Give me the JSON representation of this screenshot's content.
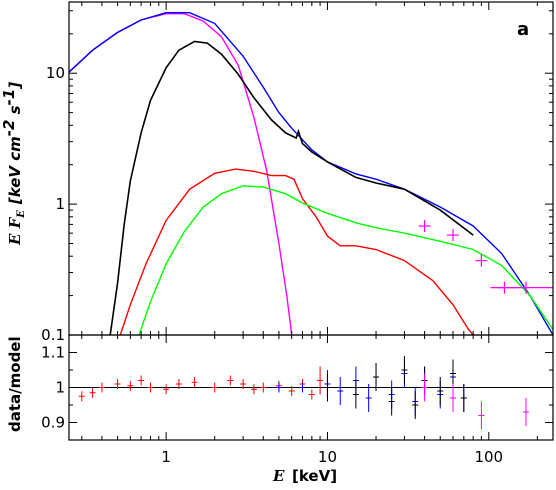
{
  "panel_label": "a",
  "colors": {
    "black_data": "#000000",
    "red": "#ff0000",
    "blue": "#0000ff",
    "green": "#00ff00",
    "magenta": "#ff00ff",
    "axis": "#000000"
  },
  "chart_data": [
    {
      "type": "line",
      "panel": "top",
      "xscale": "log",
      "yscale": "log",
      "xlim": [
        0.25,
        250
      ],
      "ylim": [
        0.1,
        35
      ],
      "ylabel_italic": "E F",
      "ylabel_sub": "E",
      "ylabel_unit": "[keV cm",
      "ylabel_exp1": "-2",
      "ylabel_mid": " s",
      "ylabel_exp2": "-1",
      "ylabel_end": "]",
      "ytick_labels": [
        {
          "v": 0.1,
          "t": "0.1"
        },
        {
          "v": 1,
          "t": "1"
        },
        {
          "v": 10,
          "t": "10"
        }
      ],
      "series": [
        {
          "color": "magenta",
          "x": [
            0.25,
            0.35,
            0.5,
            0.7,
            1.0,
            1.3,
            1.7,
            2.2,
            2.8,
            3.5,
            4.2,
            5.0,
            5.6,
            6.0
          ],
          "y": [
            10.2,
            15,
            20.5,
            25.5,
            28.5,
            28.5,
            25,
            19,
            11.5,
            4.6,
            1.8,
            0.5,
            0.2,
            0.1
          ]
        },
        {
          "color": "blue",
          "x": [
            0.25,
            0.35,
            0.5,
            0.7,
            1.0,
            1.4,
            2.0,
            3.0,
            4.0,
            5.0,
            6.0,
            7.0,
            8.0,
            10,
            15,
            20,
            30,
            50,
            80,
            120,
            180,
            250
          ],
          "y": [
            10.2,
            15,
            20.5,
            25.5,
            29,
            29,
            24,
            13.5,
            7.8,
            5.0,
            3.8,
            3.1,
            2.6,
            2.1,
            1.7,
            1.55,
            1.3,
            0.95,
            0.68,
            0.42,
            0.2,
            0.1
          ]
        },
        {
          "color": "black_data",
          "x": [
            0.45,
            0.5,
            0.55,
            0.6,
            0.7,
            0.8,
            1.0,
            1.2,
            1.5,
            1.8,
            2.2,
            2.8,
            3.5,
            4.5,
            5.5,
            6.4,
            6.6,
            7.0,
            8.0,
            10,
            15,
            20,
            30,
            50,
            80
          ],
          "y": [
            0.1,
            0.25,
            0.7,
            1.5,
            3.5,
            6.2,
            11,
            15,
            17.5,
            17,
            14,
            9.8,
            6.5,
            4.4,
            3.5,
            3.2,
            3.6,
            2.9,
            2.5,
            2.1,
            1.6,
            1.45,
            1.3,
            0.9,
            0.58
          ]
        },
        {
          "color": "red",
          "x": [
            0.52,
            0.6,
            0.75,
            1.0,
            1.4,
            2.0,
            2.7,
            3.5,
            4.5,
            5.5,
            6.2,
            7.0,
            8.5,
            10,
            12,
            15,
            20,
            30,
            45,
            60,
            75,
            80
          ],
          "y": [
            0.1,
            0.17,
            0.35,
            0.75,
            1.3,
            1.72,
            1.85,
            1.78,
            1.65,
            1.65,
            1.55,
            1.1,
            0.8,
            0.57,
            0.48,
            0.48,
            0.45,
            0.37,
            0.26,
            0.17,
            0.11,
            0.1
          ]
        },
        {
          "color": "green",
          "x": [
            0.68,
            0.8,
            1.0,
            1.3,
            1.7,
            2.2,
            3.0,
            4.0,
            5.5,
            7.0,
            10,
            15,
            20,
            30,
            50,
            80,
            120,
            180,
            250
          ],
          "y": [
            0.1,
            0.18,
            0.35,
            0.62,
            0.95,
            1.2,
            1.38,
            1.35,
            1.2,
            1.02,
            0.85,
            0.72,
            0.66,
            0.6,
            0.52,
            0.45,
            0.34,
            0.2,
            0.11
          ]
        }
      ],
      "points": [
        {
          "color": "magenta",
          "x": 40,
          "y": 0.68
        },
        {
          "color": "magenta",
          "x": 60,
          "y": 0.58
        },
        {
          "color": "magenta",
          "x": 90,
          "y": 0.37
        },
        {
          "color": "magenta",
          "x": 125,
          "y": 0.23
        },
        {
          "color": "magenta",
          "x": 170,
          "y": 0.23
        }
      ]
    },
    {
      "type": "scatter",
      "panel": "bottom",
      "xscale": "linear-log",
      "xlim": [
        0.25,
        250
      ],
      "ylim": [
        0.85,
        1.15
      ],
      "ylabel": "data/model",
      "xlabel_italic": "E",
      "xlabel_unit": "[keV]",
      "ytick_labels": [
        {
          "v": 0.9,
          "t": "0.9"
        },
        {
          "v": 1.0,
          "t": "1"
        },
        {
          "v": 1.1,
          "t": "1.1"
        }
      ],
      "xtick_labels": [
        {
          "v": 1,
          "t": "1"
        },
        {
          "v": 10,
          "t": "10"
        },
        {
          "v": 100,
          "t": "100"
        }
      ],
      "reference_line": 1.0,
      "series": [
        {
          "color": "red",
          "x": [
            0.3,
            0.35,
            0.4,
            0.5,
            0.6,
            0.7,
            0.8,
            1.0,
            1.2,
            1.5,
            2.0,
            2.5,
            3.0,
            3.5,
            4.0,
            5.0,
            6.0,
            7.0,
            8.0,
            9.0,
            10
          ],
          "y": [
            0.975,
            0.985,
            1.0,
            1.01,
            1.005,
            1.02,
            1.0,
            0.995,
            1.01,
            1.015,
            1.0,
            1.02,
            1.01,
            0.995,
            1.0,
            1.005,
            0.99,
            1.01,
            0.98,
            1.02,
            1.0
          ]
        },
        {
          "color": "blue",
          "x": [
            5,
            7,
            10,
            12,
            15,
            18,
            20,
            25,
            30,
            35,
            40,
            50,
            60,
            70
          ],
          "y": [
            1.0,
            1.0,
            1.01,
            0.99,
            1.02,
            0.97,
            1.03,
            0.98,
            1.04,
            0.96,
            1.02,
            0.98,
            1.03,
            0.97
          ]
        },
        {
          "color": "black_data",
          "x": [
            10,
            15,
            20,
            25,
            30,
            35,
            40,
            50,
            60,
            70
          ],
          "y": [
            1.0,
            0.98,
            1.03,
            0.96,
            1.05,
            0.95,
            1.02,
            0.99,
            1.04,
            0.97
          ]
        },
        {
          "color": "magenta",
          "x": [
            40,
            60,
            90,
            170
          ],
          "y": [
            1.0,
            0.97,
            0.92,
            0.93
          ]
        }
      ]
    }
  ]
}
